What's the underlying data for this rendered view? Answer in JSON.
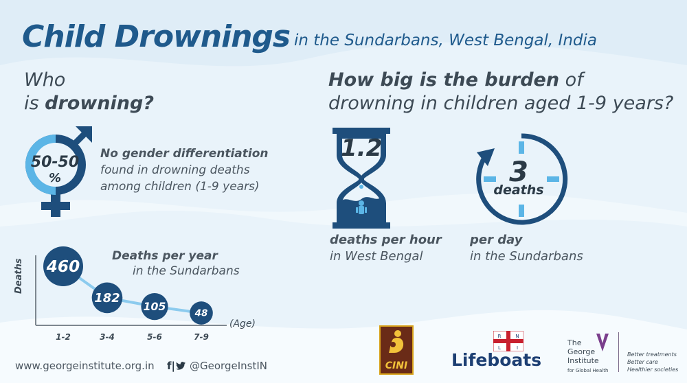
{
  "header": {
    "title_main": "Child Drownings",
    "title_sub": "in the Sundarbans, West Bengal, India"
  },
  "who": {
    "line1": "Who",
    "line2_prefix": "is ",
    "line2_bold": "drowning?"
  },
  "gender": {
    "percent_line1": "50-50",
    "percent_line2": "%",
    "text_bold": "No gender differentiation",
    "text_line2": "found in drowning deaths",
    "text_line3": "among children (1-9 years)"
  },
  "deaths_per_year": {
    "label_bold": "Deaths per year",
    "label_line2": "in the Sundarbans",
    "y_axis_label": "Deaths",
    "x_axis_unit": "(Age)"
  },
  "chart_data": {
    "type": "scatter",
    "title": "Deaths per year in the Sundarbans",
    "xlabel": "(Age)",
    "ylabel": "Deaths",
    "categories": [
      "1-2",
      "3-4",
      "5-6",
      "7-9"
    ],
    "values": [
      460,
      182,
      105,
      48
    ]
  },
  "burden": {
    "line1_bold": "How big is the burden",
    "line1_rest": " of",
    "line2": "drowning in children aged 1-9 years?"
  },
  "per_hour": {
    "value": "1.2",
    "caption_bold": "deaths per hour",
    "caption_line2": "in West Bengal"
  },
  "per_day": {
    "value": "3",
    "unit": "deaths",
    "caption_bold": "per day",
    "caption_line2": "in the Sundarbans"
  },
  "footer": {
    "url": "www.georgeinstitute.org.in",
    "social_icons": "f|",
    "handle": "@GeorgeInstIN",
    "logo_cini": "CINI",
    "logo_lifeboats": "Lifeboats",
    "logo_rnli": "RNLI",
    "george_line1": "The",
    "george_line2": "George",
    "george_line3": "Institute",
    "george_line4": "for Global Health",
    "tag1": "Better treatments",
    "tag2": "Better care",
    "tag3": "Healthier societies"
  },
  "colors": {
    "navy": "#1f5a8c",
    "bubble": "#1e4e7c",
    "light_blue": "#5bb5e6",
    "bg": "#eaf4fb"
  }
}
